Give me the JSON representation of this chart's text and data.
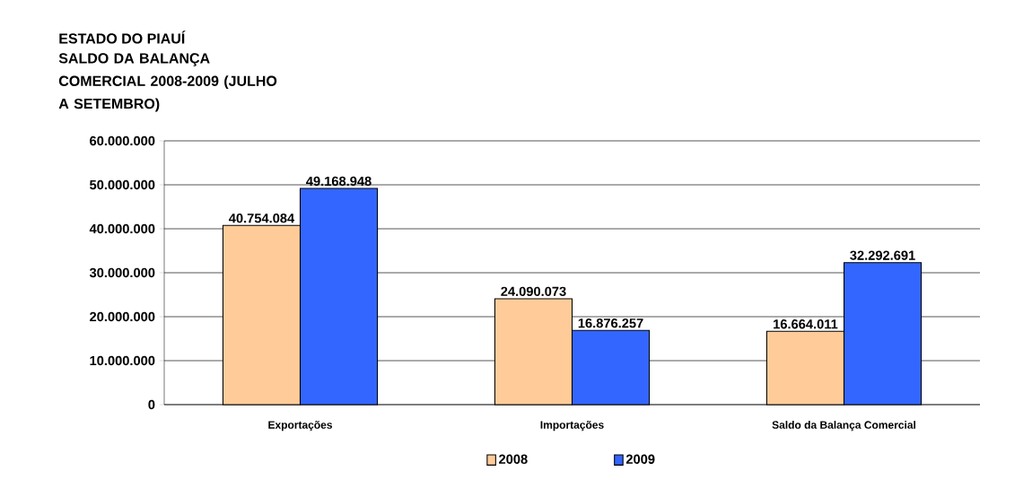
{
  "chart_data": {
    "type": "bar",
    "title": "ESTADO DO PIAUÍ",
    "subtitle": "SALDO DA BALANÇA COMERCIAL 2008-2009 (JULHO A SETEMBRO)",
    "categories": [
      "Exportações",
      "Importações",
      "Saldo da Balança Comercial"
    ],
    "series": [
      {
        "name": "2008",
        "color": "#ffcc99",
        "values": [
          40754084,
          24090073,
          16664011
        ],
        "value_labels": [
          "40.754.084",
          "24.090.073",
          "16.664.011"
        ]
      },
      {
        "name": "2009",
        "color": "#3366ff",
        "values": [
          49168948,
          16876257,
          32292691
        ],
        "value_labels": [
          "49.168.948",
          "16.876.257",
          "32.292.691"
        ]
      }
    ],
    "ylim": [
      0,
      60000000
    ],
    "yticks": [
      {
        "value": 0,
        "label": "0"
      },
      {
        "value": 10000000,
        "label": "10.000.000"
      },
      {
        "value": 20000000,
        "label": "20.000.000"
      },
      {
        "value": 30000000,
        "label": "30.000.000"
      },
      {
        "value": 40000000,
        "label": "40.000.000"
      },
      {
        "value": 50000000,
        "label": "50.000.000"
      },
      {
        "value": 60000000,
        "label": "60.000.000"
      }
    ],
    "grid": "y",
    "legend": "bottom"
  }
}
